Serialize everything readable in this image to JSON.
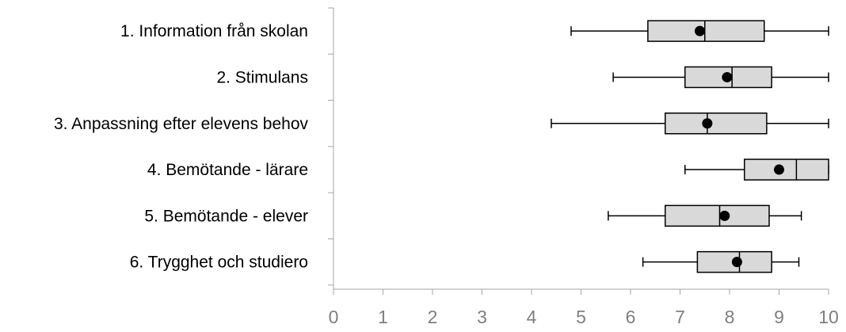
{
  "colors": {
    "box_fill": "#d9d9d9",
    "stroke": "#000000",
    "axis": "#a6a6a6",
    "tick_text": "#7f7f7f"
  },
  "chart_data": {
    "type": "boxplot",
    "orientation": "horizontal",
    "title": "",
    "xlabel": "",
    "ylabel": "",
    "xlim": [
      0,
      10
    ],
    "xticks": [
      "0",
      "1",
      "2",
      "3",
      "4",
      "5",
      "6",
      "7",
      "8",
      "9",
      "10"
    ],
    "grid": false,
    "legend": "none",
    "categories": [
      "1. Information från skolan",
      "2. Stimulans",
      "3. Anpassning efter elevens behov",
      "4. Bemötande - lärare",
      "5. Bemötande - elever",
      "6. Trygghet och studiero"
    ],
    "boxes": [
      {
        "min": 4.8,
        "q1": 6.35,
        "median": 7.5,
        "q3": 8.7,
        "max": 10.0,
        "mean": 7.4
      },
      {
        "min": 5.65,
        "q1": 7.1,
        "median": 8.05,
        "q3": 8.85,
        "max": 10.0,
        "mean": 7.95
      },
      {
        "min": 4.4,
        "q1": 6.7,
        "median": 7.55,
        "q3": 8.75,
        "max": 10.0,
        "mean": 7.55
      },
      {
        "min": 7.1,
        "q1": 8.3,
        "median": 9.35,
        "q3": 10.0,
        "max": 10.0,
        "mean": 9.0
      },
      {
        "min": 5.55,
        "q1": 6.7,
        "median": 7.8,
        "q3": 8.8,
        "max": 9.45,
        "mean": 7.9
      },
      {
        "min": 6.25,
        "q1": 7.35,
        "median": 8.2,
        "q3": 8.85,
        "max": 9.4,
        "mean": 8.15
      }
    ]
  }
}
